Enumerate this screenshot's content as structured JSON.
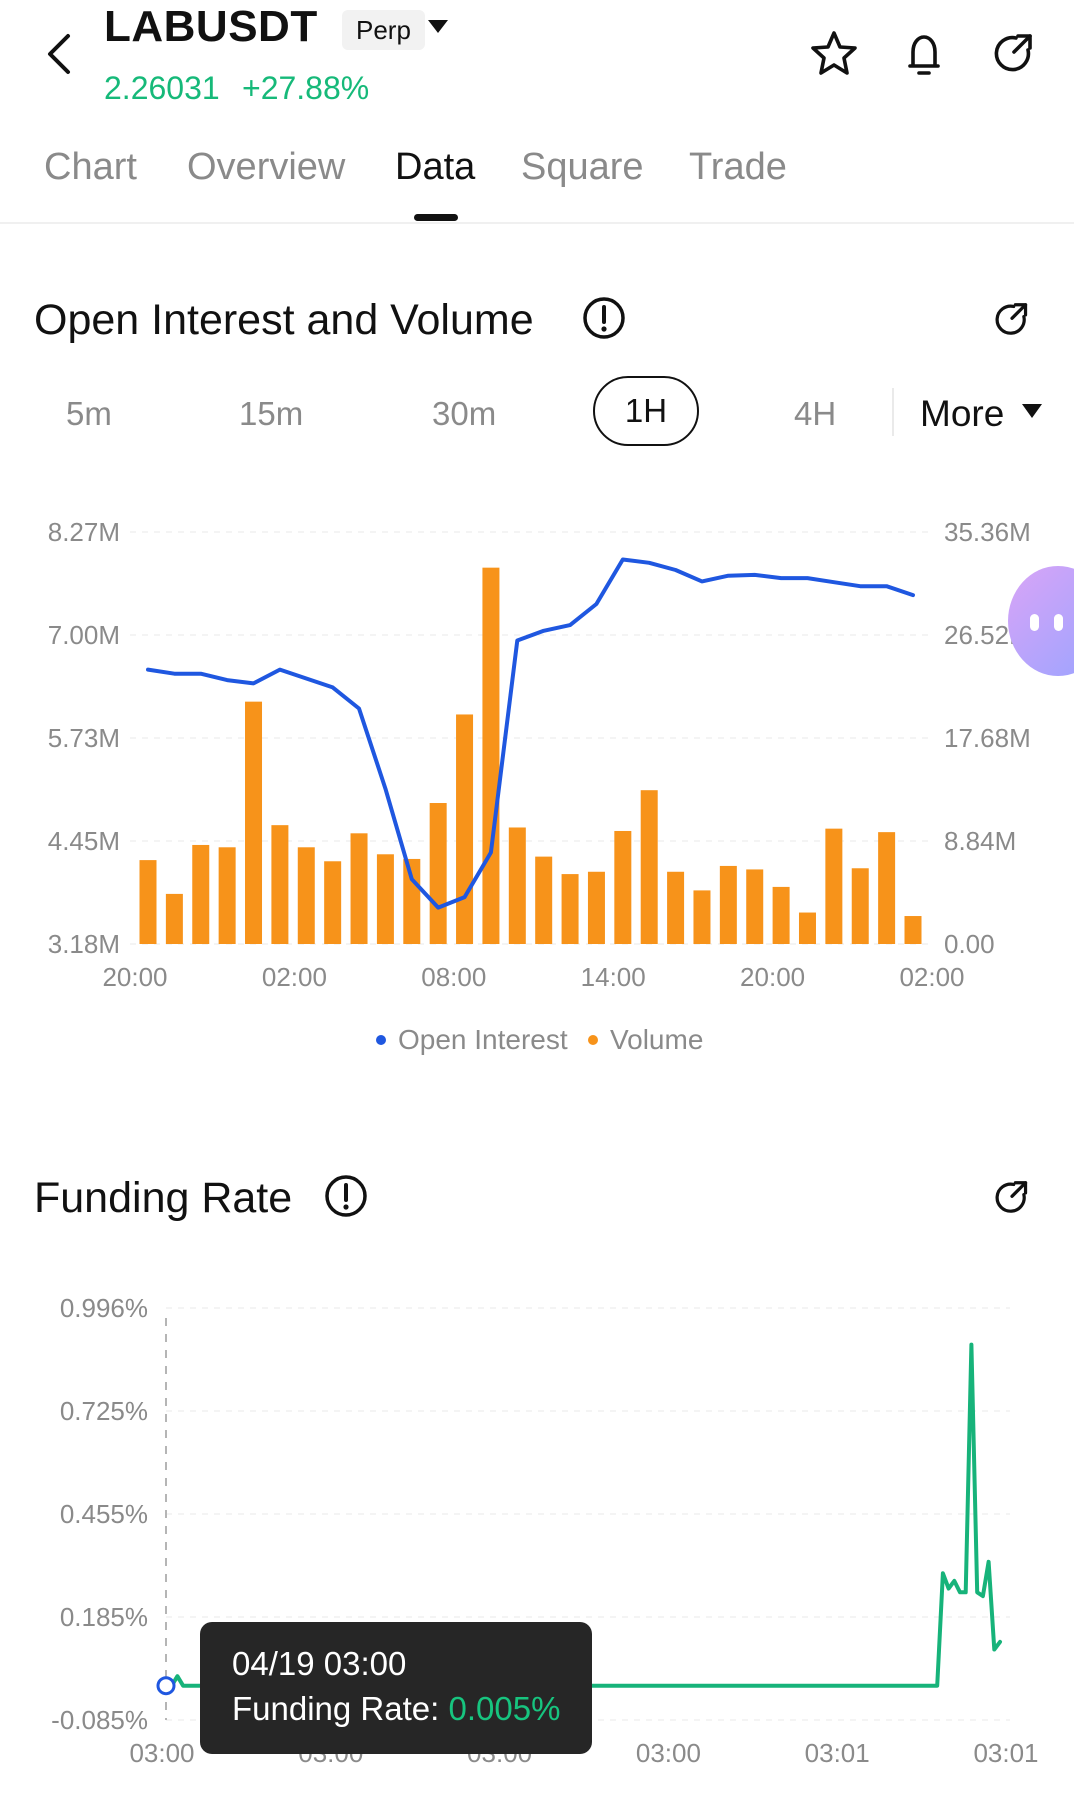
{
  "header": {
    "symbol": "LABUSDT",
    "contract_type": "Perp",
    "price": "2.26031",
    "change": "+27.88%",
    "icons": [
      "back-icon",
      "star-icon",
      "bell-icon",
      "share-icon"
    ]
  },
  "tabs": [
    {
      "label": "Chart"
    },
    {
      "label": "Overview"
    },
    {
      "label": "Data",
      "active": true
    },
    {
      "label": "Square"
    },
    {
      "label": "Trade"
    }
  ],
  "oi_section": {
    "title": "Open Interest and Volume",
    "periods": [
      "5m",
      "15m",
      "30m",
      "1H",
      "4H"
    ],
    "selected_period": "1H",
    "more_label": "More",
    "legend": {
      "series_a": "Open Interest",
      "series_b": "Volume"
    }
  },
  "funding_section": {
    "title": "Funding Rate",
    "tooltip": {
      "time": "04/19 03:00",
      "label": "Funding Rate:",
      "value": "0.005%"
    }
  },
  "colors": {
    "accent_green": "#16b979",
    "oi_line": "#1f57e0",
    "volume_bar": "#f7931a",
    "funding_line": "#17b37a"
  },
  "chart_data": [
    {
      "type": "bar",
      "title": "Open Interest and Volume",
      "x_tick_labels": [
        "20:00",
        "02:00",
        "08:00",
        "14:00",
        "20:00",
        "02:00"
      ],
      "y_left_ticks": [
        "8.27M",
        "7.00M",
        "5.73M",
        "4.45M",
        "3.18M"
      ],
      "y_right_ticks": [
        "35.36M",
        "26.52M",
        "17.68M",
        "8.84M",
        "0.00"
      ],
      "ylim_left": [
        3180000,
        8270000
      ],
      "ylim_right": [
        0,
        35360000
      ],
      "grid": true,
      "legend_position": "bottom",
      "series": [
        {
          "name": "Open Interest",
          "type": "line",
          "axis": "left",
          "values": [
            6.57,
            6.52,
            6.52,
            6.44,
            6.4,
            6.57,
            6.46,
            6.35,
            6.09,
            5.1,
            3.98,
            3.63,
            3.76,
            4.31,
            6.93,
            7.05,
            7.12,
            7.38,
            7.93,
            7.89,
            7.8,
            7.66,
            7.73,
            7.74,
            7.7,
            7.7,
            7.65,
            7.6,
            7.6,
            7.49
          ]
        },
        {
          "name": "Volume",
          "type": "bar",
          "axis": "right",
          "values": [
            7.2,
            4.3,
            8.5,
            8.3,
            20.8,
            10.2,
            8.3,
            7.1,
            9.5,
            7.7,
            7.3,
            12.1,
            19.7,
            32.3,
            10.0,
            7.5,
            6.0,
            6.2,
            9.7,
            13.2,
            6.2,
            4.6,
            6.7,
            6.4,
            4.9,
            2.7,
            9.9,
            6.5,
            9.6,
            2.4
          ]
        }
      ]
    },
    {
      "type": "line",
      "title": "Funding Rate",
      "x_tick_labels": [
        "03:00",
        "03:00",
        "03:00",
        "03:00",
        "03:01",
        "03:01"
      ],
      "y_ticks": [
        "0.996%",
        "0.725%",
        "0.455%",
        "0.185%",
        "-0.085%"
      ],
      "ylim": [
        -0.085,
        0.996
      ],
      "grid": true,
      "series": [
        {
          "name": "Funding Rate",
          "values": [
            0.005,
            0.005,
            0.03,
            0.005,
            0.005,
            0.005,
            0.005,
            0.005,
            0.005,
            0.005,
            0.005,
            0.005,
            0.005,
            0.005,
            0.005,
            0.03,
            0.005,
            0.005,
            0.005,
            0.005,
            0.005,
            0.005,
            0.005,
            0.005,
            0.005,
            0.005,
            0.005,
            0.005,
            0.005,
            0.005,
            0.025,
            0.005,
            0.005,
            0.005,
            0.005,
            0.005,
            0.005,
            0.005,
            0.005,
            0.005,
            0.005,
            0.005,
            0.005,
            0.005,
            0.005,
            0.005,
            0.005,
            0.005,
            0.005,
            0.005,
            0.005,
            0.005,
            0.005,
            0.005,
            0.005,
            0.005,
            0.005,
            0.005,
            0.005,
            0.005,
            0.005,
            0.005,
            0.005,
            0.005,
            0.005,
            0.005,
            0.005,
            0.005,
            0.005,
            0.005,
            0.005,
            0.005,
            0.005,
            0.005,
            0.005,
            0.005,
            0.005,
            0.005,
            0.005,
            0.005,
            0.005,
            0.005,
            0.005,
            0.005,
            0.005,
            0.005,
            0.005,
            0.005,
            0.005,
            0.005,
            0.005,
            0.005,
            0.005,
            0.005,
            0.005,
            0.005,
            0.005,
            0.005,
            0.005,
            0.005,
            0.005,
            0.005,
            0.005,
            0.005,
            0.005,
            0.005,
            0.005,
            0.005,
            0.005,
            0.005,
            0.005,
            0.005,
            0.005,
            0.005,
            0.005,
            0.005,
            0.005,
            0.005,
            0.005,
            0.005,
            0.005,
            0.005,
            0.005,
            0.005,
            0.005,
            0.005,
            0.005,
            0.005,
            0.005,
            0.005,
            0.005,
            0.005,
            0.005,
            0.005,
            0.005,
            0.005,
            0.3,
            0.26,
            0.28,
            0.25,
            0.25,
            0.9,
            0.25,
            0.24,
            0.33,
            0.1,
            0.12
          ]
        }
      ]
    }
  ]
}
